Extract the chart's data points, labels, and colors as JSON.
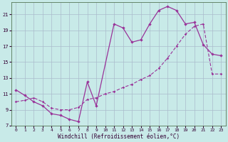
{
  "xlabel": "Windchill (Refroidissement éolien,°C)",
  "background_color": "#c8eae8",
  "line_color": "#993399",
  "x_min": 0,
  "x_max": 23,
  "y_min": 7,
  "y_max": 22,
  "y_ticks": [
    7,
    9,
    11,
    13,
    15,
    17,
    19,
    21
  ],
  "x_ticks": [
    0,
    1,
    2,
    3,
    4,
    5,
    6,
    7,
    8,
    9,
    10,
    11,
    12,
    13,
    14,
    15,
    16,
    17,
    18,
    19,
    20,
    21,
    22,
    23
  ],
  "solid_x": [
    0,
    1,
    2,
    3,
    4,
    5,
    6,
    7,
    8,
    9,
    11,
    12,
    13,
    14,
    15,
    16,
    17,
    18,
    19,
    20,
    21,
    22,
    23
  ],
  "solid_y": [
    11.5,
    10.8,
    10.0,
    9.5,
    8.5,
    8.3,
    7.8,
    7.5,
    12.5,
    9.5,
    19.8,
    19.3,
    17.5,
    17.8,
    19.8,
    21.5,
    22.0,
    21.5,
    19.8,
    20.0,
    17.2,
    16.0,
    15.8
  ],
  "dashed_x": [
    0,
    1,
    2,
    3,
    4,
    5,
    6,
    7,
    8,
    9,
    10,
    11,
    12,
    13,
    14,
    15,
    16,
    17,
    18,
    19,
    20,
    21,
    22,
    23
  ],
  "dashed_y": [
    10.0,
    10.2,
    10.5,
    10.0,
    9.2,
    9.0,
    9.0,
    9.3,
    10.3,
    10.5,
    11.0,
    11.3,
    11.8,
    12.2,
    12.8,
    13.3,
    14.2,
    15.5,
    17.0,
    18.5,
    19.5,
    19.8,
    13.5,
    13.5
  ]
}
